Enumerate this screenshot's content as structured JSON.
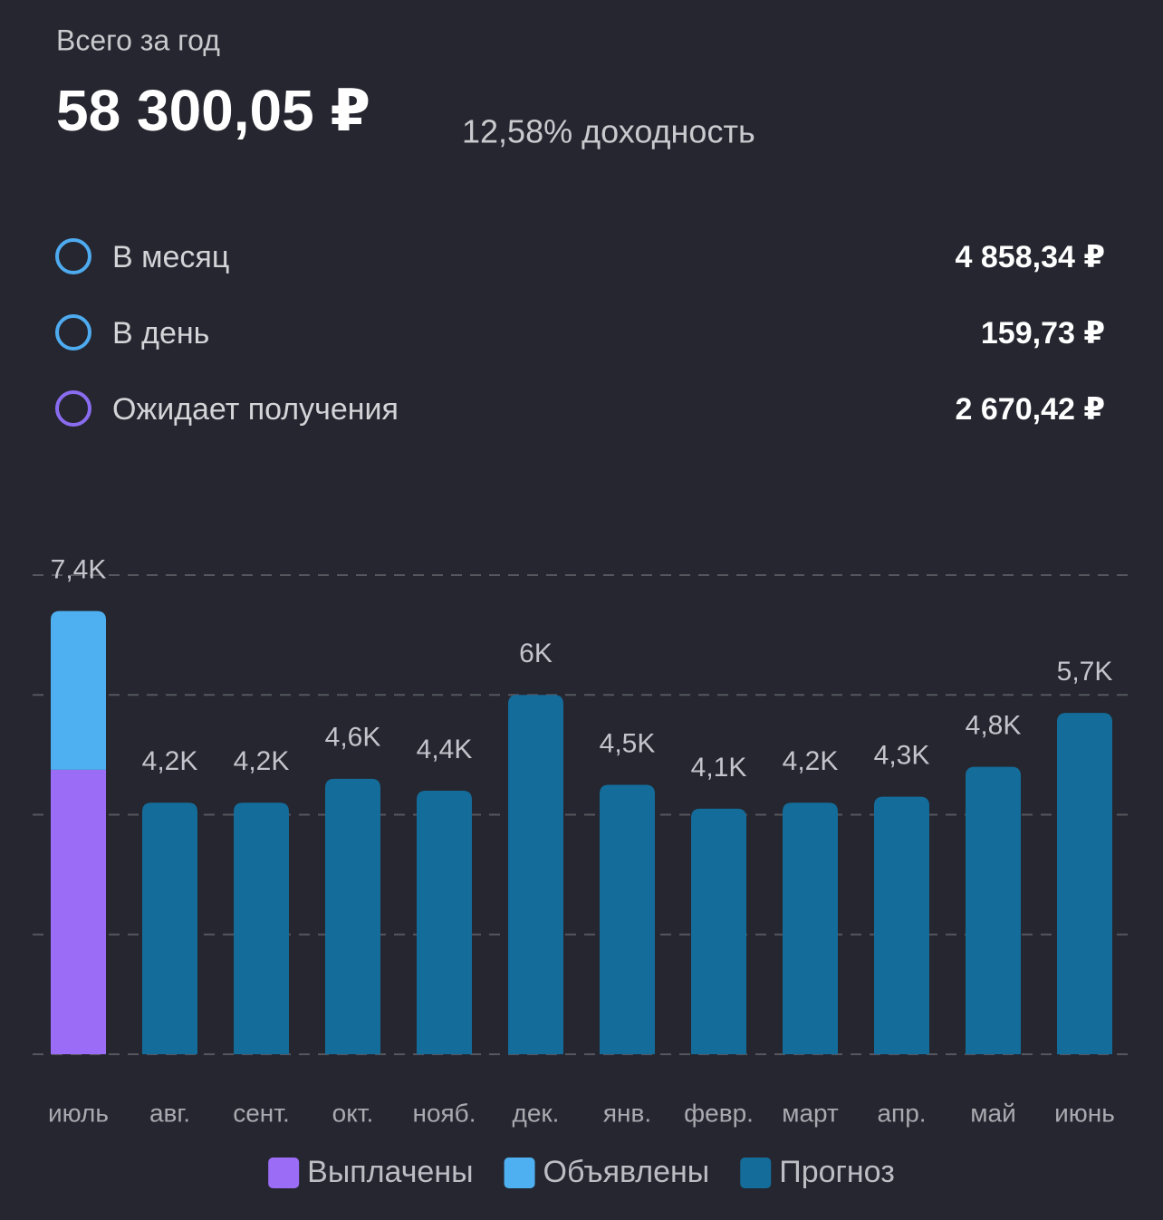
{
  "header": {
    "title": "Всего за год",
    "total": "58 300,05 ₽",
    "yield": "12,58% доходность"
  },
  "stats": [
    {
      "label": "В месяц",
      "value": "4 858,34 ₽"
    },
    {
      "label": "В день",
      "value": "159,73 ₽"
    },
    {
      "label": "Ожидает получения",
      "value": "2 670,42 ₽"
    }
  ],
  "chart_data": {
    "type": "stacked_bar",
    "categories": [
      "июль",
      "авг.",
      "сент.",
      "окт.",
      "нояб.",
      "дек.",
      "янв.",
      "февр.",
      "март",
      "апр.",
      "май",
      "июнь"
    ],
    "series": [
      {
        "name": "Выплачены",
        "color": "#9b6cf6",
        "values": [
          4750,
          null,
          null,
          null,
          null,
          null,
          null,
          null,
          null,
          null,
          null,
          null
        ]
      },
      {
        "name": "Объявлены",
        "color": "#4eb0f0",
        "values": [
          2650,
          null,
          null,
          null,
          null,
          null,
          null,
          null,
          null,
          null,
          null,
          null
        ]
      },
      {
        "name": "Прогноз",
        "color": "#146c9a",
        "values": [
          null,
          4200,
          4200,
          4600,
          4400,
          6000,
          4500,
          4100,
          4200,
          4300,
          4800,
          5700
        ],
        "value_labels": [
          null,
          "4,2K",
          "4,2K",
          "4,6K",
          "4,4K",
          "6K",
          "4,5K",
          "4,1K",
          "4,2K",
          "4,3K",
          "4,8K",
          "5,7K"
        ]
      }
    ],
    "annotations": [
      {
        "category": "июль",
        "label": "7,4K",
        "value": 7400
      }
    ],
    "ylim": [
      0,
      8000
    ],
    "yticks": [
      0,
      2000,
      4000,
      6000,
      8000
    ],
    "grid": true
  }
}
